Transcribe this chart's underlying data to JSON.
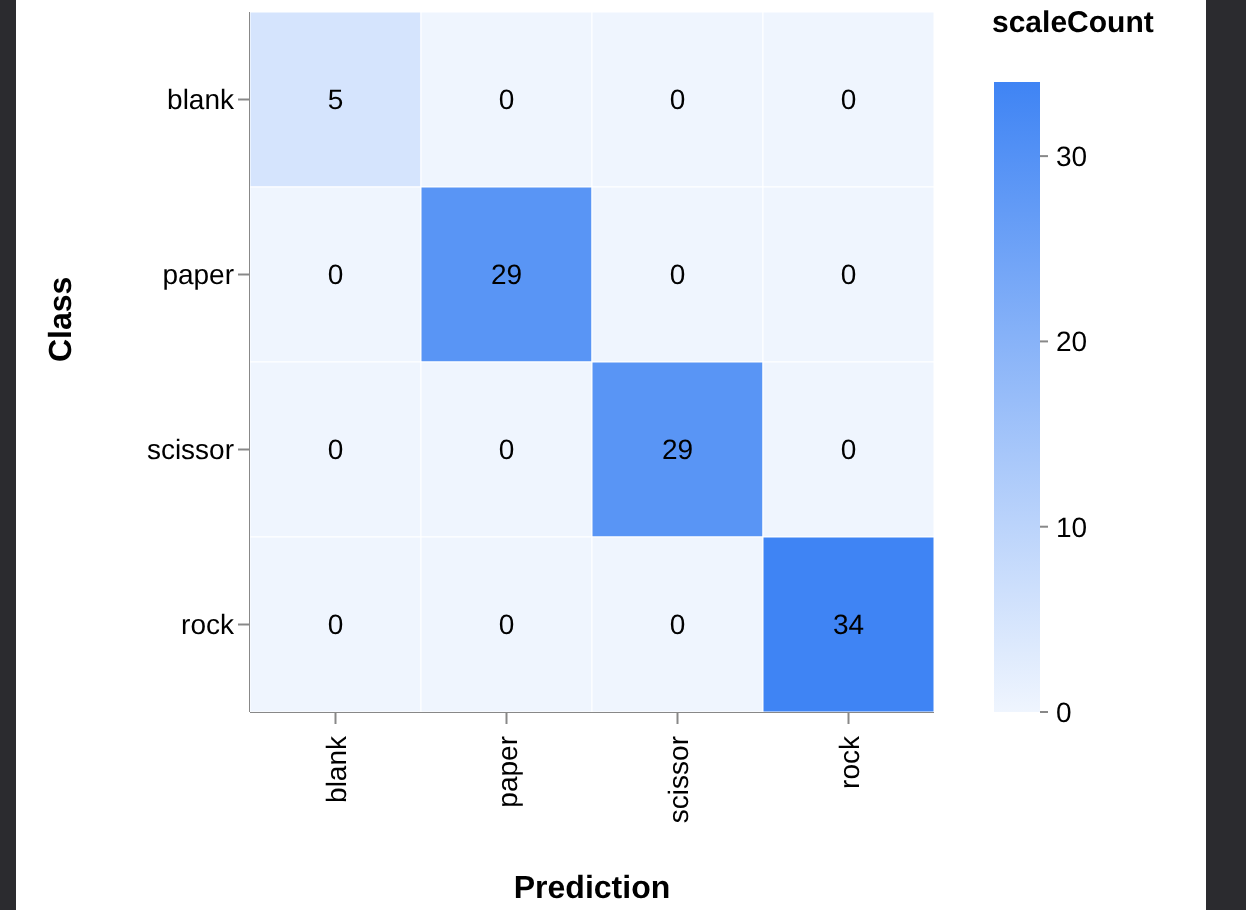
{
  "chart_data": {
    "type": "heatmap",
    "xlabel": "Prediction",
    "ylabel": "Class",
    "clabel": "scaleCount",
    "categories": [
      "blank",
      "paper",
      "scissor",
      "rock"
    ],
    "y_categories": [
      "blank",
      "paper",
      "scissor",
      "rock"
    ],
    "cells": [
      [
        5,
        0,
        0,
        0
      ],
      [
        0,
        29,
        0,
        0
      ],
      [
        0,
        0,
        29,
        0
      ],
      [
        0,
        0,
        0,
        34
      ]
    ],
    "clim": [
      0,
      34
    ],
    "cticks": [
      0,
      10,
      20,
      30
    ],
    "data_labels": true
  }
}
